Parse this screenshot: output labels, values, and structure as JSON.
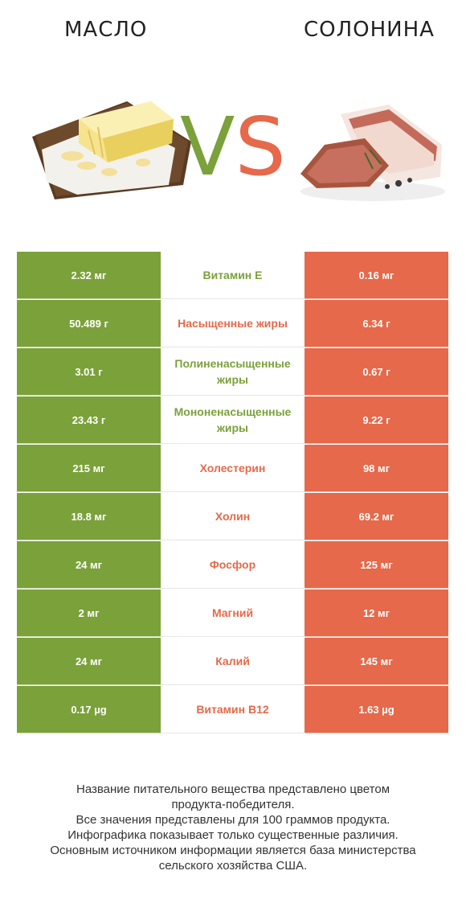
{
  "header": {
    "left_title": "МАСЛО",
    "right_title": "СОЛОНИНА",
    "vs_v": "V",
    "vs_s": "S"
  },
  "colors": {
    "green": "#7ba13a",
    "red": "#e5694a"
  },
  "rows": [
    {
      "left": "2.32 мг",
      "name": "Витамин E",
      "right": "0.16 мг",
      "winner": "green"
    },
    {
      "left": "50.489 г",
      "name": "Насыщенные жиры",
      "right": "6.34 г",
      "winner": "red"
    },
    {
      "left": "3.01 г",
      "name": "Полиненасыщенные жиры",
      "right": "0.67 г",
      "winner": "green"
    },
    {
      "left": "23.43 г",
      "name": "Мононенасыщенные жиры",
      "right": "9.22 г",
      "winner": "green"
    },
    {
      "left": "215 мг",
      "name": "Холестерин",
      "right": "98 мг",
      "winner": "red"
    },
    {
      "left": "18.8 мг",
      "name": "Холин",
      "right": "69.2 мг",
      "winner": "red"
    },
    {
      "left": "24 мг",
      "name": "Фосфор",
      "right": "125 мг",
      "winner": "red"
    },
    {
      "left": "2 мг",
      "name": "Магний",
      "right": "12 мг",
      "winner": "red"
    },
    {
      "left": "24 мг",
      "name": "Калий",
      "right": "145 мг",
      "winner": "red"
    },
    {
      "left": "0.17 µg",
      "name": "Витамин B12",
      "right": "1.63 µg",
      "winner": "red"
    }
  ],
  "footnote": {
    "line1": "Название питательного вещества представлено цветом",
    "line2": "продукта-победителя.",
    "line3": "Все значения представлены для 100 граммов продукта.",
    "line4": "Инфографика показывает только существенные различия.",
    "line5": "Основным источником информации является база министерства",
    "line6": "сельского хозяйства США."
  }
}
